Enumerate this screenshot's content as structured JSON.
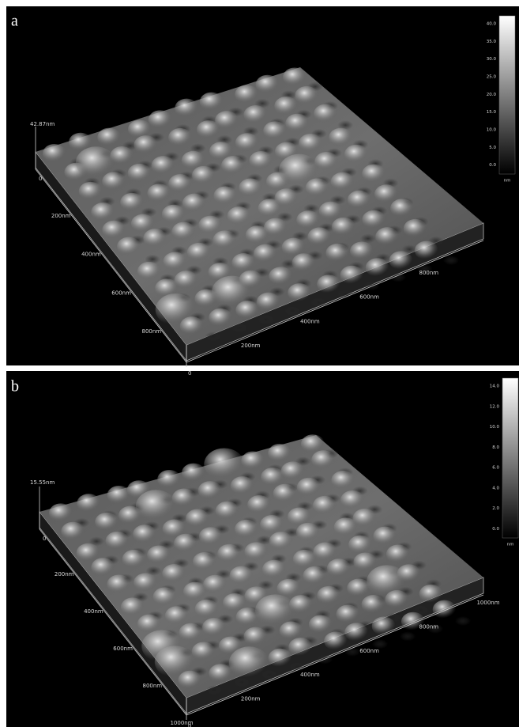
{
  "panels": [
    {
      "label": "a",
      "z_max": "42.87nm",
      "z_origin": "0",
      "y_axis_labels": [
        "200nm",
        "400nm",
        "600nm",
        "800nm"
      ],
      "x_axis_labels": [
        "200nm",
        "400nm",
        "600nm",
        "800nm"
      ],
      "corner_label": "0",
      "colorbar_ticks": [
        "40.0",
        "35.0",
        "30.0",
        "25.0",
        "20.0",
        "15.0",
        "10.0",
        "5.0",
        "0.0"
      ],
      "colorbar_unit": "nm"
    },
    {
      "label": "b",
      "z_max": "15.55nm",
      "z_origin": "0",
      "y_axis_labels": [
        "200nm",
        "400nm",
        "600nm",
        "800nm",
        "1000nm"
      ],
      "x_axis_labels": [
        "200nm",
        "400nm",
        "600nm",
        "800nm",
        "1000nm"
      ],
      "corner_label": "0",
      "colorbar_ticks": [
        "14.0",
        "12.0",
        "10.0",
        "8.0",
        "6.0",
        "4.0",
        "2.0",
        "0.0"
      ],
      "colorbar_unit": "nm"
    }
  ]
}
